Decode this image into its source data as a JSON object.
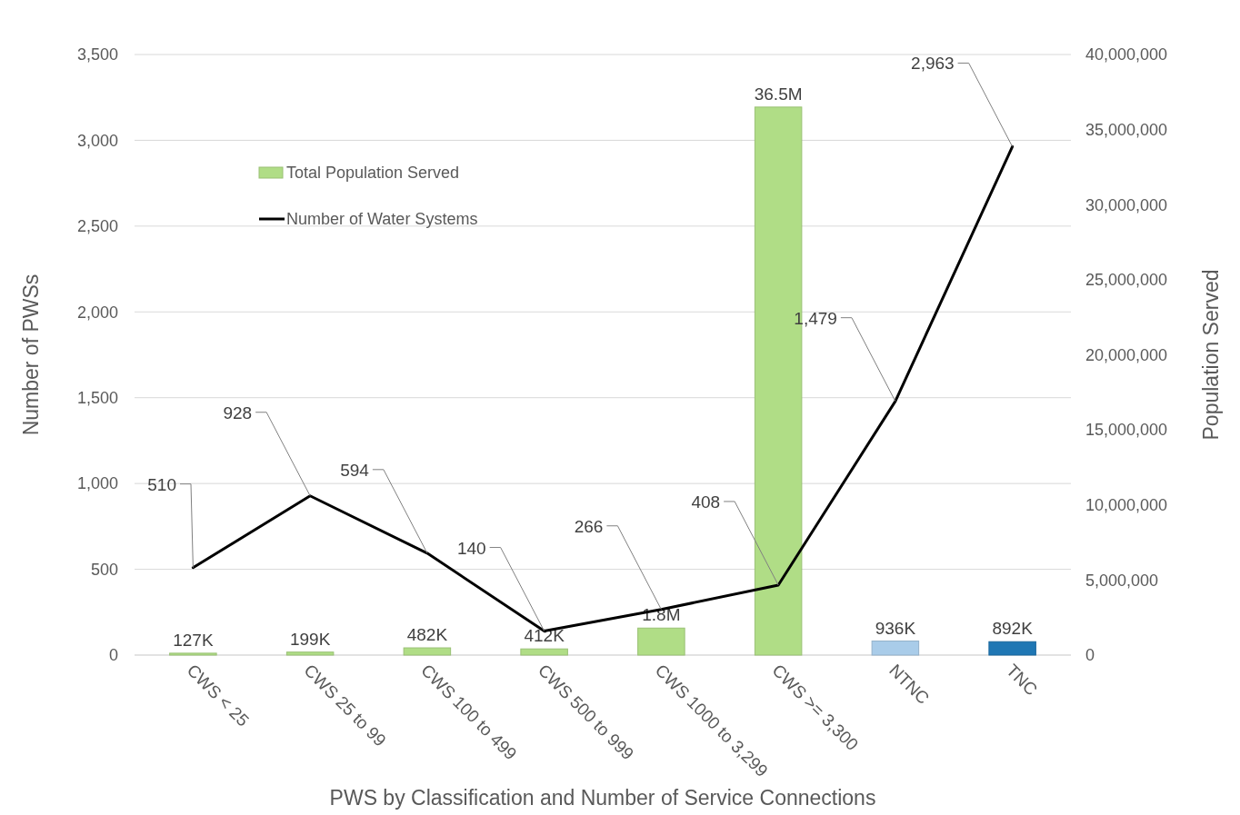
{
  "chart_data": {
    "type": "bar",
    "xlabel": "PWS by Classification and Number of Service Connections",
    "ylabel": "Number of PWSs",
    "y2label": "Population Served",
    "categories": [
      "CWS < 25",
      "CWS 25 to 99",
      "CWS 100 to 499",
      "CWS 500 to 999",
      "CWS 1000 to 3,299",
      "CWS >= 3,300",
      "NTNC",
      "TNC"
    ],
    "series": [
      {
        "name": "Total Population Served",
        "axis": "y2",
        "color": "#b0dd86",
        "colors": [
          "#b0dd86",
          "#b0dd86",
          "#b0dd86",
          "#b0dd86",
          "#b0dd86",
          "#b0dd86",
          "#a9cce9",
          "#1f77b4"
        ],
        "values": [
          127000,
          199000,
          482000,
          412000,
          1800000,
          36500000,
          936000,
          892000
        ],
        "value_labels": [
          "127K",
          "199K",
          "482K",
          "412K",
          "1.8M",
          "36.5M",
          "936K",
          "892K"
        ]
      },
      {
        "name": "Number of Water Systems",
        "type": "line",
        "axis": "y",
        "color": "#000000",
        "values": [
          510,
          928,
          594,
          140,
          266,
          408,
          1479,
          2963
        ],
        "value_labels": [
          "510",
          "928",
          "594",
          "140",
          "266",
          "408",
          "1,479",
          "2,963"
        ]
      }
    ],
    "ylim": [
      0,
      3500
    ],
    "yticks": [
      0,
      500,
      {
        "value": 1000,
        "label": "1,000"
      },
      {
        "value": 1500,
        "label": "1,500"
      },
      {
        "value": 2000,
        "label": "2,000"
      },
      {
        "value": 2500,
        "label": "2,500"
      },
      {
        "value": 3000,
        "label": "3,000"
      },
      {
        "value": 3500,
        "label": "3,500"
      }
    ],
    "y2lim": [
      0,
      40000000
    ],
    "y2ticks": [
      0,
      {
        "value": 5000000,
        "label": "5,000,000"
      },
      {
        "value": 10000000,
        "label": "10,000,000"
      },
      {
        "value": 15000000,
        "label": "15,000,000"
      },
      {
        "value": 20000000,
        "label": "20,000,000"
      },
      {
        "value": 25000000,
        "label": "25,000,000"
      },
      {
        "value": 30000000,
        "label": "30,000,000"
      },
      {
        "value": 35000000,
        "label": "35,000,000"
      },
      {
        "value": 40000000,
        "label": "40,000,000"
      }
    ],
    "grid": "y",
    "legend": "top left",
    "marker": "none",
    "line_style": "solid"
  }
}
